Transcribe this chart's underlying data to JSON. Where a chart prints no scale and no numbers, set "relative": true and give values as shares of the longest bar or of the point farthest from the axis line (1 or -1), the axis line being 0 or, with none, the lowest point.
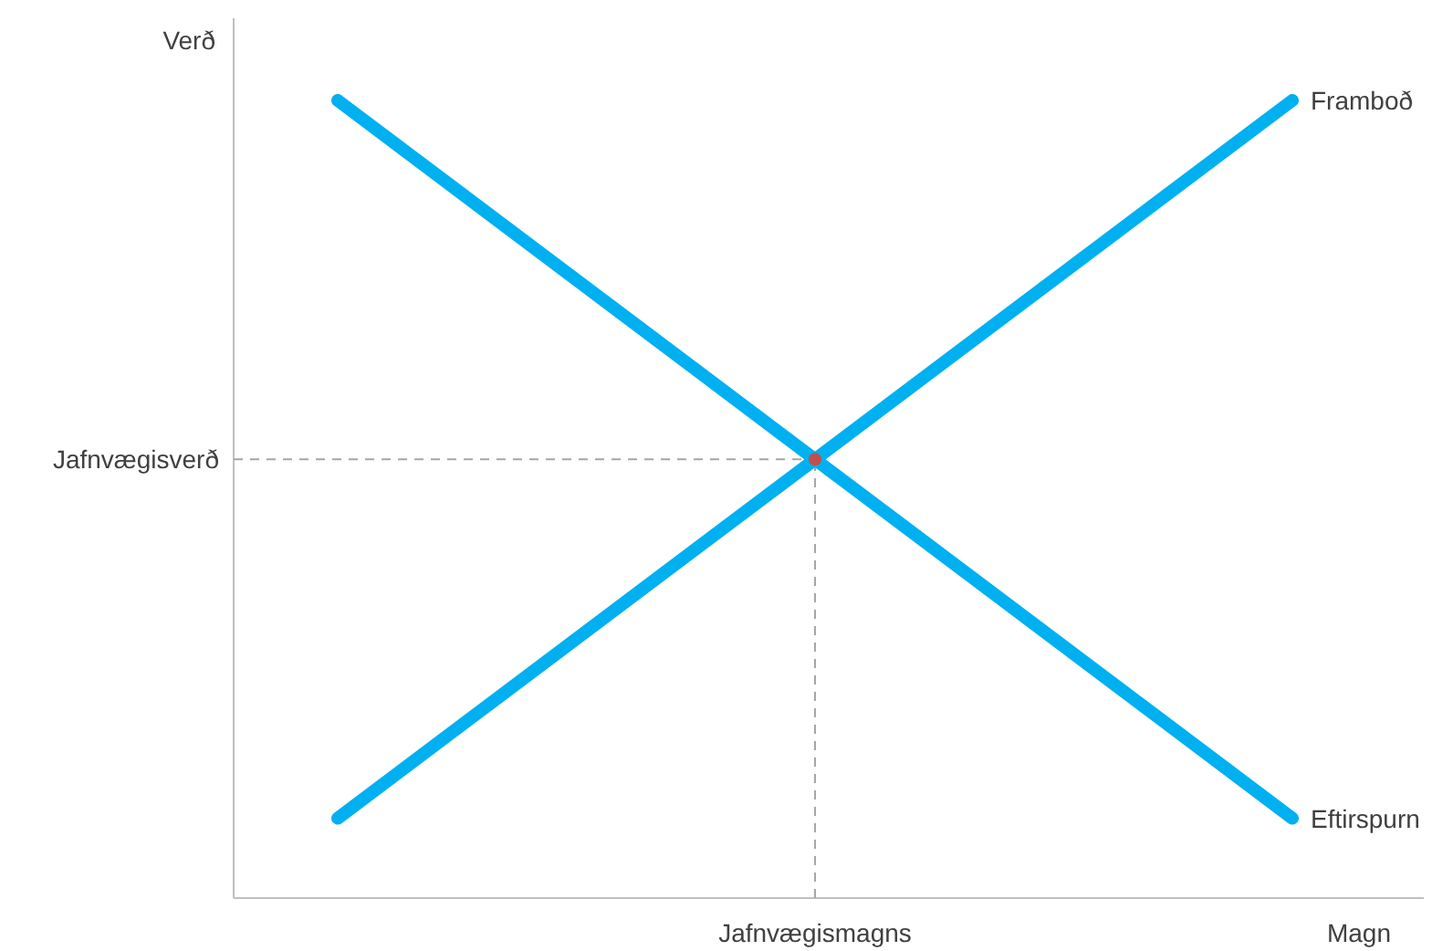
{
  "chart_data": {
    "type": "line",
    "relative": true,
    "xlabel": "Magn",
    "ylabel": "Verð",
    "categories": [
      null,
      null,
      null
    ],
    "series": [
      {
        "name": "Framboð",
        "color": "#00b0f0",
        "values": [
          0.1,
          0.55,
          1
        ]
      },
      {
        "name": "Eftirspurn",
        "color": "#00b0f0",
        "values": [
          1,
          0.55,
          0.1
        ]
      }
    ],
    "ref_lines": [
      {
        "axis": "y",
        "value": 0.55,
        "label": "Jafnvægisverð",
        "color": "#a6a6a6",
        "line_style": "dashed"
      }
    ],
    "annotations": [
      "Jafnvægismagns"
    ],
    "legend": false
  }
}
